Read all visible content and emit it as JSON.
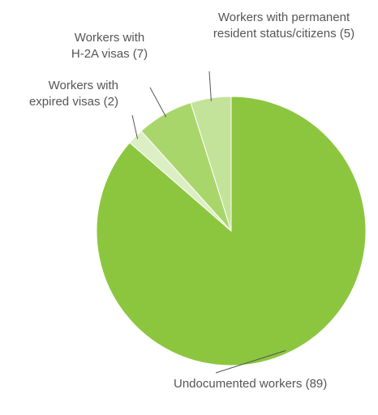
{
  "chart_data": {
    "type": "pie",
    "title": "",
    "start_angle_deg": 0,
    "direction": "clockwise",
    "slices": [
      {
        "name": "Undocumented workers",
        "value": 89,
        "label_lines": [
          "Undocumented workers (89)"
        ],
        "color": "#8cc63f"
      },
      {
        "name": "Workers with expired visas",
        "value": 2,
        "label_lines": [
          "Workers with",
          "expired visas (2)"
        ],
        "color": "#dcefc4"
      },
      {
        "name": "Workers with H-2A visas",
        "value": 7,
        "label_lines": [
          "Workers with",
          "H-2A visas (7)"
        ],
        "color": "#a9d66b"
      },
      {
        "name": "Workers with permanent resident status/citizens",
        "value": 5,
        "label_lines": [
          "Workers with permanent",
          "resident status/citizens (5)"
        ],
        "color": "#c4e39a"
      }
    ]
  }
}
